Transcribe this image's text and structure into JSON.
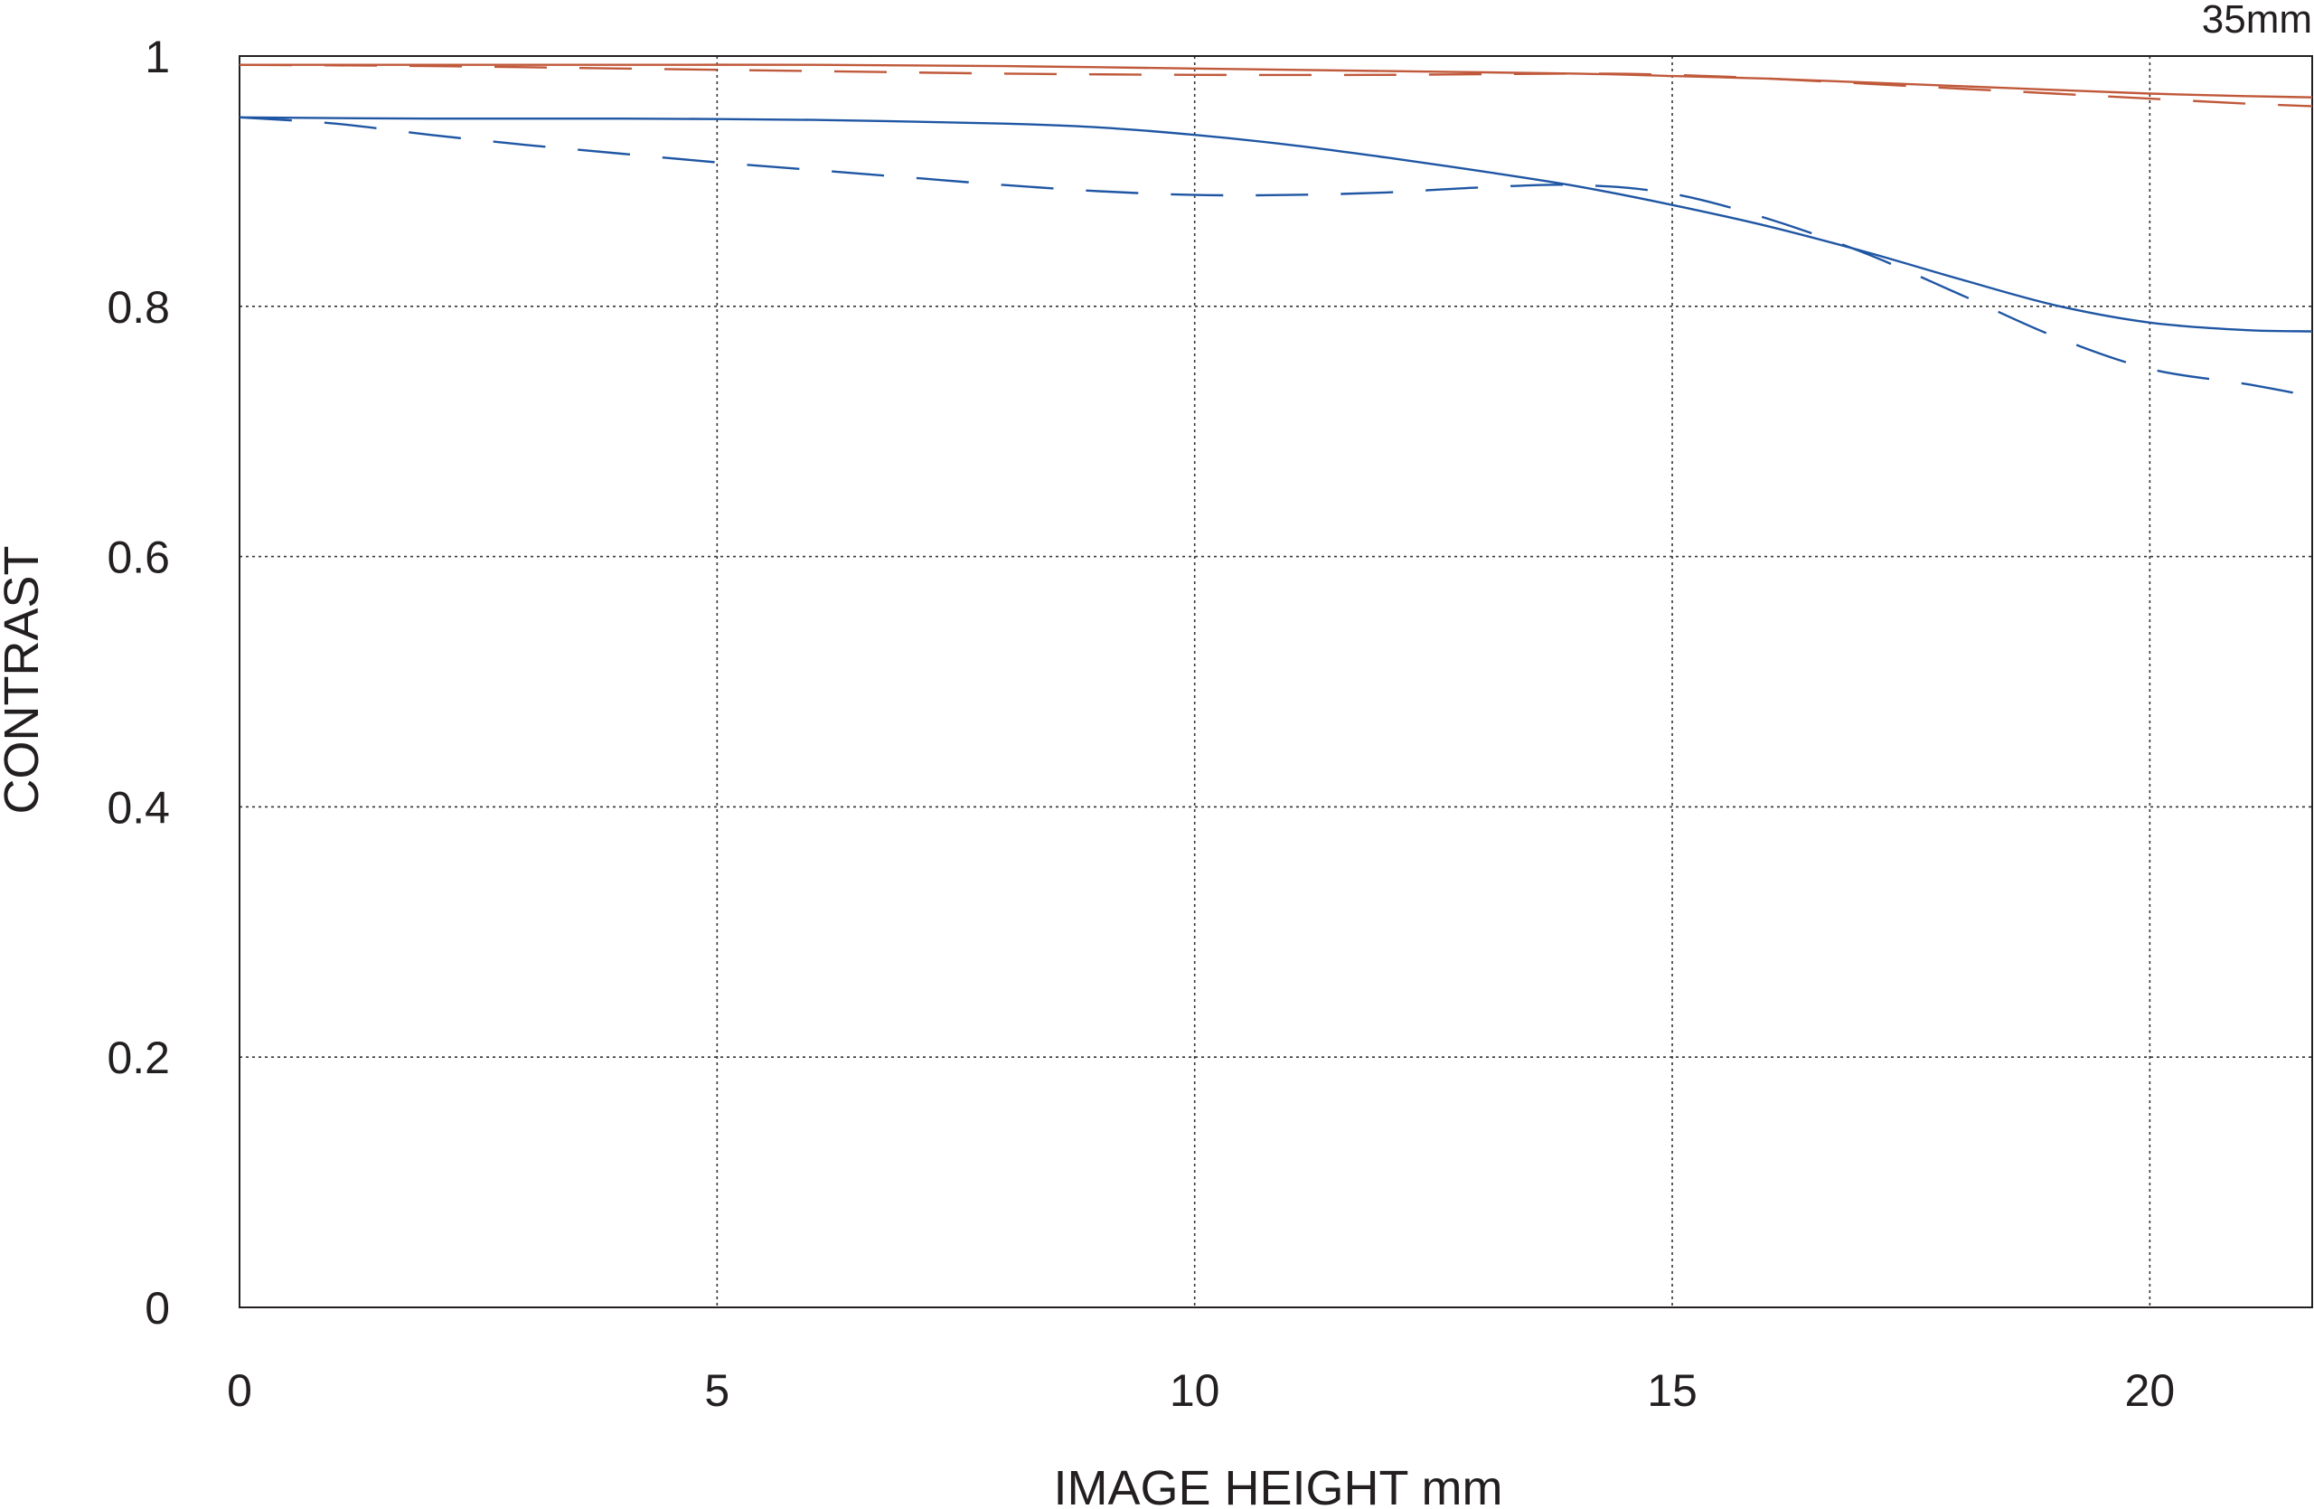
{
  "chart_data": {
    "type": "line",
    "corner_label": "35mm",
    "xlabel": "IMAGE HEIGHT  mm",
    "ylabel": "CONTRAST",
    "xlim": [
      0,
      21.7
    ],
    "ylim": [
      0,
      1
    ],
    "x_ticks": [
      0,
      5,
      10,
      15,
      20
    ],
    "x_tick_labels": [
      "0",
      "5",
      "10",
      "15",
      "20"
    ],
    "y_ticks": [
      0,
      0.2,
      0.4,
      0.6,
      0.8,
      1
    ],
    "y_tick_labels": [
      "0",
      "0.2",
      "0.4",
      "0.6",
      "0.8",
      "1"
    ],
    "grid": true,
    "grid_style": "dotted",
    "series": [
      {
        "color": "#c0583a",
        "style": "solid",
        "x": [
          0,
          2,
          4,
          6,
          8,
          10,
          12,
          14,
          15,
          16,
          17,
          18,
          19,
          20,
          21,
          21.7
        ],
        "y": [
          0.993,
          0.993,
          0.993,
          0.993,
          0.992,
          0.99,
          0.988,
          0.986,
          0.984,
          0.982,
          0.979,
          0.976,
          0.973,
          0.97,
          0.968,
          0.967
        ]
      },
      {
        "color": "#c0583a",
        "style": "dashed",
        "x": [
          0,
          2,
          4,
          6,
          8,
          10,
          12,
          14,
          15,
          16,
          17,
          18,
          19,
          20,
          21,
          21.7
        ],
        "y": [
          0.993,
          0.992,
          0.99,
          0.988,
          0.986,
          0.985,
          0.985,
          0.986,
          0.985,
          0.982,
          0.978,
          0.974,
          0.97,
          0.966,
          0.962,
          0.96
        ]
      },
      {
        "color": "#1f56a3",
        "style": "solid",
        "x": [
          0,
          2,
          4,
          6,
          8,
          9,
          10,
          11,
          12,
          13,
          14,
          15,
          16,
          17,
          18,
          19,
          20,
          21,
          21.7
        ],
        "y": [
          0.951,
          0.95,
          0.95,
          0.949,
          0.946,
          0.943,
          0.937,
          0.929,
          0.919,
          0.908,
          0.896,
          0.881,
          0.864,
          0.844,
          0.822,
          0.801,
          0.787,
          0.781,
          0.78
        ]
      },
      {
        "color": "#1f56a3",
        "style": "dashed",
        "x": [
          0,
          1,
          2,
          3,
          4,
          5,
          6,
          7,
          8,
          9,
          10,
          11,
          12,
          13,
          14,
          15,
          16,
          17,
          18,
          19,
          20,
          21,
          21.7
        ],
        "y": [
          0.951,
          0.946,
          0.937,
          0.929,
          0.922,
          0.915,
          0.909,
          0.903,
          0.897,
          0.892,
          0.889,
          0.889,
          0.891,
          0.895,
          0.897,
          0.89,
          0.87,
          0.843,
          0.81,
          0.776,
          0.75,
          0.738,
          0.728
        ]
      }
    ]
  }
}
